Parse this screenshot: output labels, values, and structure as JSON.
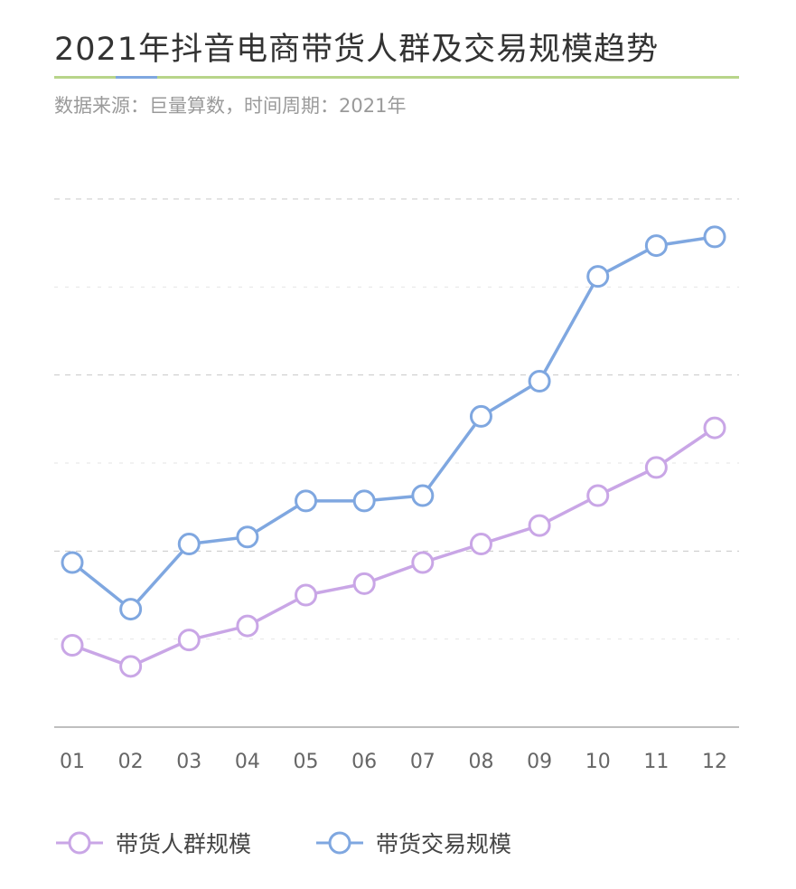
{
  "header": {
    "title": "2021年抖音电商带货人群及交易规模趋势",
    "subtitle": "数据来源：巨量算数，时间周期：2021年"
  },
  "colors": {
    "people": "#c9a6e6",
    "trade": "#7fa7e0",
    "title_rule": "#b8d58a",
    "grid": "#d8d8d8",
    "axis": "#aaaaaa"
  },
  "chart_data": {
    "type": "line",
    "categories": [
      "01",
      "02",
      "03",
      "04",
      "05",
      "06",
      "07",
      "08",
      "09",
      "10",
      "11",
      "12"
    ],
    "series": [
      {
        "name": "带货人群规模",
        "values": [
          0.93,
          0.69,
          0.99,
          1.15,
          1.5,
          1.63,
          1.87,
          2.08,
          2.29,
          2.63,
          2.95,
          3.4
        ]
      },
      {
        "name": "带货交易规模",
        "values": [
          1.87,
          1.34,
          2.08,
          2.16,
          2.57,
          2.57,
          2.63,
          3.53,
          3.93,
          5.12,
          5.47,
          5.57
        ]
      }
    ],
    "ylim": [
      0,
      6
    ],
    "grid": true,
    "legend": "bottom-left",
    "xlabel": "",
    "ylabel": ""
  }
}
